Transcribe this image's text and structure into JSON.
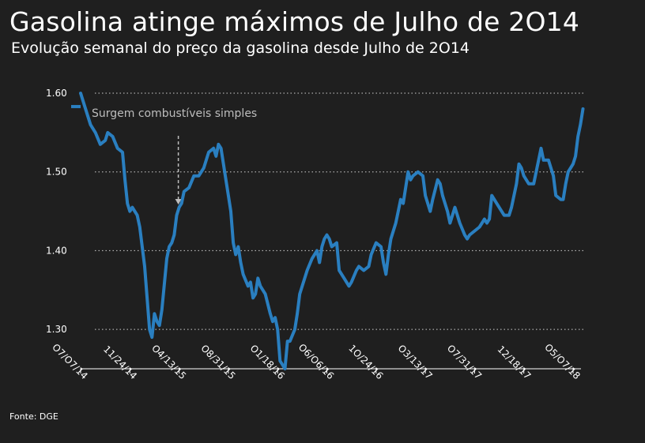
{
  "title": "Gasolina atinge máximos de Julho de 2O14",
  "subtitle": "Evolução semanal do preço da gasolina desde Julho de 2O14",
  "source": "Fonte: DGE",
  "colors": {
    "background": "#1f1f1f",
    "line": "#2a7fc0",
    "grid": "#cfcfcf",
    "annotation": "#bdbdbd"
  },
  "chart_data": {
    "type": "line",
    "title": "Gasolina atinge máximos de Julho de 2O14",
    "subtitle": "Evolução semanal do preço da gasolina desde Julho de 2O14",
    "xlabel": "",
    "ylabel": "",
    "ylim": [
      1.25,
      1.6
    ],
    "y_ticks": [
      1.3,
      1.4,
      1.5,
      1.6
    ],
    "y_tick_labels": [
      "1.30",
      "1.40",
      "1.50",
      "1.60"
    ],
    "x_ticks": [
      "2014-07-07",
      "2014-11-24",
      "2015-04-13",
      "2015-08-31",
      "2016-01-18",
      "2016-06-06",
      "2016-10-24",
      "2017-03-13",
      "2017-07-31",
      "2017-12-18",
      "2018-05-07"
    ],
    "x_tick_labels": [
      "O7/O7/14",
      "11/24/14",
      "O4/13/15",
      "O8/31/15",
      "O1/18/16",
      "O6/O6/16",
      "1O/24/16",
      "O3/13/17",
      "O7/31/17",
      "12/18/17",
      "O5/O7/18"
    ],
    "grid": "horizontal dotted",
    "legend": "none",
    "annotation": {
      "text": "Surgem combustíveis simples",
      "date": "2015-04-13"
    },
    "series": [
      {
        "points": [
          [
            "2014-07-07",
            1.6
          ],
          [
            "2014-07-21",
            1.58
          ],
          [
            "2014-08-04",
            1.56
          ],
          [
            "2014-08-18",
            1.55
          ],
          [
            "2014-09-01",
            1.535
          ],
          [
            "2014-09-15",
            1.54
          ],
          [
            "2014-09-22",
            1.55
          ],
          [
            "2014-10-06",
            1.545
          ],
          [
            "2014-10-20",
            1.53
          ],
          [
            "2014-11-03",
            1.525
          ],
          [
            "2014-11-10",
            1.49
          ],
          [
            "2014-11-17",
            1.46
          ],
          [
            "2014-11-24",
            1.45
          ],
          [
            "2014-12-01",
            1.455
          ],
          [
            "2014-12-15",
            1.445
          ],
          [
            "2014-12-22",
            1.43
          ],
          [
            "2015-01-05",
            1.38
          ],
          [
            "2015-01-12",
            1.34
          ],
          [
            "2015-01-19",
            1.3
          ],
          [
            "2015-01-26",
            1.29
          ],
          [
            "2015-02-02",
            1.32
          ],
          [
            "2015-02-09",
            1.31
          ],
          [
            "2015-02-16",
            1.305
          ],
          [
            "2015-02-23",
            1.325
          ],
          [
            "2015-03-09",
            1.39
          ],
          [
            "2015-03-16",
            1.405
          ],
          [
            "2015-03-23",
            1.41
          ],
          [
            "2015-03-30",
            1.42
          ],
          [
            "2015-04-06",
            1.445
          ],
          [
            "2015-04-13",
            1.455
          ],
          [
            "2015-04-20",
            1.46
          ],
          [
            "2015-04-27",
            1.475
          ],
          [
            "2015-05-11",
            1.48
          ],
          [
            "2015-05-25",
            1.495
          ],
          [
            "2015-06-08",
            1.495
          ],
          [
            "2015-06-22",
            1.505
          ],
          [
            "2015-07-06",
            1.525
          ],
          [
            "2015-07-20",
            1.53
          ],
          [
            "2015-07-27",
            1.52
          ],
          [
            "2015-08-03",
            1.535
          ],
          [
            "2015-08-10",
            1.53
          ],
          [
            "2015-08-17",
            1.51
          ],
          [
            "2015-08-24",
            1.49
          ],
          [
            "2015-08-31",
            1.47
          ],
          [
            "2015-09-07",
            1.45
          ],
          [
            "2015-09-14",
            1.41
          ],
          [
            "2015-09-21",
            1.395
          ],
          [
            "2015-09-28",
            1.405
          ],
          [
            "2015-10-05",
            1.385
          ],
          [
            "2015-10-12",
            1.37
          ],
          [
            "2015-10-26",
            1.355
          ],
          [
            "2015-11-02",
            1.36
          ],
          [
            "2015-11-09",
            1.34
          ],
          [
            "2015-11-16",
            1.345
          ],
          [
            "2015-11-23",
            1.365
          ],
          [
            "2015-11-30",
            1.355
          ],
          [
            "2015-12-14",
            1.345
          ],
          [
            "2015-12-28",
            1.32
          ],
          [
            "2016-01-04",
            1.31
          ],
          [
            "2016-01-11",
            1.315
          ],
          [
            "2016-01-18",
            1.3
          ],
          [
            "2016-01-25",
            1.26
          ],
          [
            "2016-02-01",
            1.255
          ],
          [
            "2016-02-08",
            1.25
          ],
          [
            "2016-02-15",
            1.285
          ],
          [
            "2016-02-22",
            1.285
          ],
          [
            "2016-03-07",
            1.3
          ],
          [
            "2016-03-14",
            1.32
          ],
          [
            "2016-03-21",
            1.345
          ],
          [
            "2016-04-04",
            1.365
          ],
          [
            "2016-04-11",
            1.375
          ],
          [
            "2016-04-25",
            1.39
          ],
          [
            "2016-05-09",
            1.4
          ],
          [
            "2016-05-16",
            1.385
          ],
          [
            "2016-05-23",
            1.405
          ],
          [
            "2016-05-30",
            1.415
          ],
          [
            "2016-06-06",
            1.42
          ],
          [
            "2016-06-13",
            1.415
          ],
          [
            "2016-06-20",
            1.405
          ],
          [
            "2016-07-04",
            1.41
          ],
          [
            "2016-07-11",
            1.375
          ],
          [
            "2016-07-25",
            1.365
          ],
          [
            "2016-08-08",
            1.355
          ],
          [
            "2016-08-15",
            1.36
          ],
          [
            "2016-08-29",
            1.375
          ],
          [
            "2016-09-05",
            1.38
          ],
          [
            "2016-09-19",
            1.375
          ],
          [
            "2016-10-03",
            1.38
          ],
          [
            "2016-10-10",
            1.395
          ],
          [
            "2016-10-24",
            1.41
          ],
          [
            "2016-11-07",
            1.405
          ],
          [
            "2016-11-14",
            1.385
          ],
          [
            "2016-11-21",
            1.37
          ],
          [
            "2016-11-28",
            1.395
          ],
          [
            "2016-12-05",
            1.415
          ],
          [
            "2016-12-19",
            1.435
          ],
          [
            "2016-12-26",
            1.45
          ],
          [
            "2017-01-02",
            1.465
          ],
          [
            "2017-01-09",
            1.46
          ],
          [
            "2017-01-16",
            1.48
          ],
          [
            "2017-01-23",
            1.5
          ],
          [
            "2017-01-30",
            1.49
          ],
          [
            "2017-02-06",
            1.495
          ],
          [
            "2017-02-20",
            1.5
          ],
          [
            "2017-03-06",
            1.495
          ],
          [
            "2017-03-13",
            1.47
          ],
          [
            "2017-03-20",
            1.46
          ],
          [
            "2017-03-27",
            1.45
          ],
          [
            "2017-04-03",
            1.465
          ],
          [
            "2017-04-17",
            1.49
          ],
          [
            "2017-04-24",
            1.485
          ],
          [
            "2017-05-01",
            1.47
          ],
          [
            "2017-05-15",
            1.45
          ],
          [
            "2017-05-22",
            1.435
          ],
          [
            "2017-05-29",
            1.445
          ],
          [
            "2017-06-05",
            1.455
          ],
          [
            "2017-06-19",
            1.435
          ],
          [
            "2017-07-03",
            1.42
          ],
          [
            "2017-07-10",
            1.415
          ],
          [
            "2017-07-17",
            1.42
          ],
          [
            "2017-07-31",
            1.425
          ],
          [
            "2017-08-14",
            1.43
          ],
          [
            "2017-08-28",
            1.44
          ],
          [
            "2017-09-04",
            1.435
          ],
          [
            "2017-09-11",
            1.44
          ],
          [
            "2017-09-18",
            1.47
          ],
          [
            "2017-09-25",
            1.465
          ],
          [
            "2017-10-09",
            1.455
          ],
          [
            "2017-10-23",
            1.445
          ],
          [
            "2017-11-06",
            1.445
          ],
          [
            "2017-11-13",
            1.455
          ],
          [
            "2017-11-27",
            1.485
          ],
          [
            "2017-12-04",
            1.51
          ],
          [
            "2017-12-11",
            1.505
          ],
          [
            "2017-12-18",
            1.495
          ],
          [
            "2018-01-01",
            1.485
          ],
          [
            "2018-01-15",
            1.485
          ],
          [
            "2018-01-29",
            1.515
          ],
          [
            "2018-02-05",
            1.53
          ],
          [
            "2018-02-12",
            1.515
          ],
          [
            "2018-02-26",
            1.515
          ],
          [
            "2018-03-12",
            1.495
          ],
          [
            "2018-03-19",
            1.47
          ],
          [
            "2018-04-02",
            1.465
          ],
          [
            "2018-04-09",
            1.465
          ],
          [
            "2018-04-16",
            1.485
          ],
          [
            "2018-04-23",
            1.5
          ],
          [
            "2018-05-07",
            1.51
          ],
          [
            "2018-05-14",
            1.52
          ],
          [
            "2018-05-21",
            1.545
          ],
          [
            "2018-05-28",
            1.56
          ],
          [
            "2018-06-04",
            1.58
          ]
        ]
      }
    ]
  }
}
